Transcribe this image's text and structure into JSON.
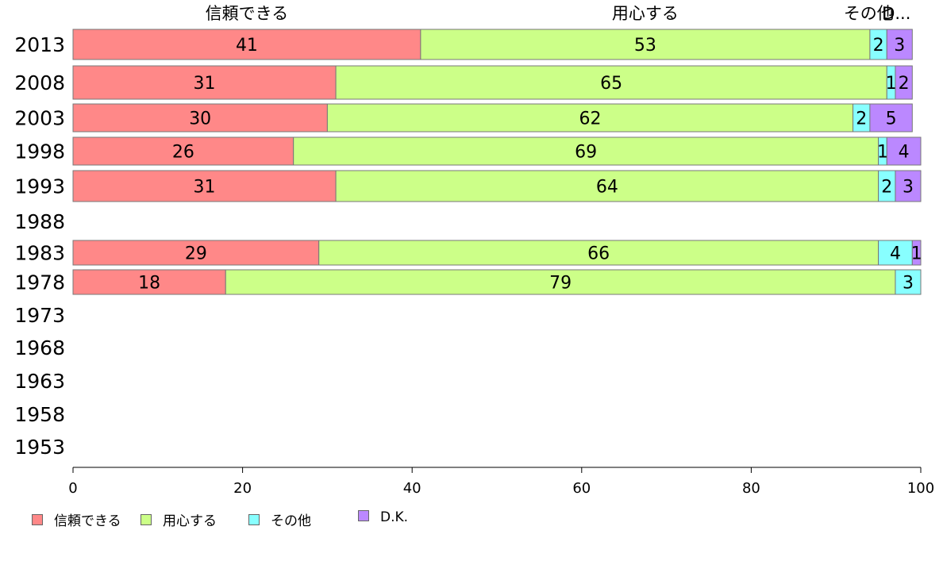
{
  "chart_data": {
    "type": "bar",
    "orientation": "horizontal",
    "stacked": true,
    "categories": [
      "2013",
      "2008",
      "2003",
      "1998",
      "1993",
      "1988",
      "1983",
      "1978",
      "1973",
      "1968",
      "1963",
      "1958",
      "1953"
    ],
    "series": [
      {
        "name": "信頼できる",
        "color": "#ff8888",
        "values": [
          41,
          31,
          30,
          26,
          31,
          null,
          29,
          18,
          null,
          null,
          null,
          null,
          null
        ]
      },
      {
        "name": "用心する",
        "color": "#ccff88",
        "values": [
          53,
          65,
          62,
          69,
          64,
          null,
          66,
          79,
          null,
          null,
          null,
          null,
          null
        ]
      },
      {
        "name": "その他",
        "color": "#88ffff",
        "values": [
          2,
          1,
          2,
          1,
          2,
          null,
          4,
          3,
          null,
          null,
          null,
          null,
          null
        ]
      },
      {
        "name": "D.K.",
        "color": "#bb88ff",
        "values": [
          3,
          2,
          5,
          4,
          3,
          null,
          1,
          null,
          null,
          null,
          null,
          null,
          null
        ]
      }
    ],
    "top_labels": [
      "信頼できる",
      "用心する",
      "その他",
      "D..."
    ],
    "xlim": [
      0,
      100
    ],
    "x_ticks": [
      "0",
      "20",
      "40",
      "60",
      "80",
      "100"
    ],
    "grid": false,
    "legend_position": "bottom-left"
  }
}
